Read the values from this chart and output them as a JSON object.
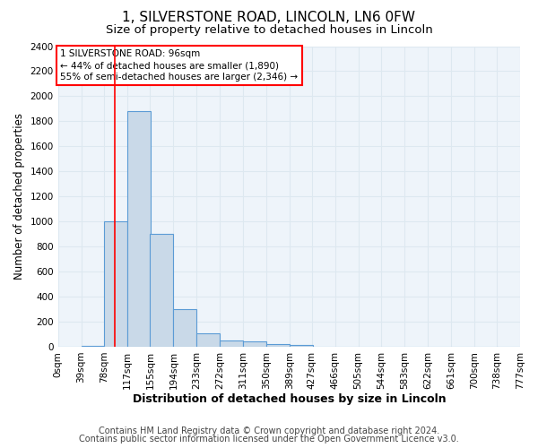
{
  "title": "1, SILVERSTONE ROAD, LINCOLN, LN6 0FW",
  "subtitle": "Size of property relative to detached houses in Lincoln",
  "xlabel": "Distribution of detached houses by size in Lincoln",
  "ylabel": "Number of detached properties",
  "footnote1": "Contains HM Land Registry data © Crown copyright and database right 2024.",
  "footnote2": "Contains public sector information licensed under the Open Government Licence v3.0.",
  "bin_labels": [
    "0sqm",
    "39sqm",
    "78sqm",
    "117sqm",
    "155sqm",
    "194sqm",
    "233sqm",
    "272sqm",
    "311sqm",
    "350sqm",
    "389sqm",
    "427sqm",
    "466sqm",
    "505sqm",
    "544sqm",
    "583sqm",
    "622sqm",
    "661sqm",
    "700sqm",
    "738sqm",
    "777sqm"
  ],
  "bin_edges": [
    0,
    39,
    78,
    117,
    155,
    194,
    233,
    272,
    311,
    350,
    389,
    427,
    466,
    505,
    544,
    583,
    622,
    661,
    700,
    738,
    777
  ],
  "bar_heights": [
    0,
    10,
    1000,
    1880,
    900,
    300,
    110,
    50,
    40,
    20,
    15,
    0,
    0,
    0,
    0,
    0,
    0,
    0,
    0,
    0
  ],
  "bar_color": "#c9d9e8",
  "bar_edge_color": "#5b9bd5",
  "red_line_x": 96,
  "ylim": [
    0,
    2400
  ],
  "yticks": [
    0,
    200,
    400,
    600,
    800,
    1000,
    1200,
    1400,
    1600,
    1800,
    2000,
    2200,
    2400
  ],
  "annotation_box_text": "1 SILVERSTONE ROAD: 96sqm\n← 44% of detached houses are smaller (1,890)\n55% of semi-detached houses are larger (2,346) →",
  "grid_color": "#dde8f0",
  "background_color": "#eef4fa",
  "title_fontsize": 11,
  "subtitle_fontsize": 9.5,
  "xlabel_fontsize": 9,
  "ylabel_fontsize": 8.5,
  "tick_fontsize": 7.5,
  "annot_fontsize": 7.5,
  "footnote_fontsize": 7
}
